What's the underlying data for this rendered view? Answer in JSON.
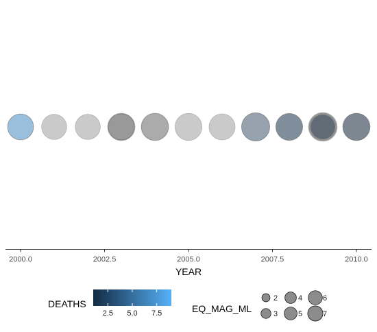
{
  "chart_data": {
    "type": "scatter",
    "title": "",
    "xlabel": "YEAR",
    "ylabel": "",
    "xlim": [
      1999.55,
      2010.45
    ],
    "x_ticks": [
      2000.0,
      2002.5,
      2005.0,
      2007.5,
      2010.0
    ],
    "x_tick_labels": [
      "2000.0",
      "2002.5",
      "2005.0",
      "2007.5",
      "2010.0"
    ],
    "grid": false,
    "points": [
      {
        "year": 2000,
        "layers": [
          {
            "mag": 5.6,
            "deaths": null
          },
          {
            "mag": 5.4,
            "deaths": 9
          }
        ]
      },
      {
        "year": 2001,
        "layers": [
          {
            "mag": 5.2,
            "deaths": null
          }
        ]
      },
      {
        "year": 2002,
        "layers": [
          {
            "mag": 5.2,
            "deaths": null
          }
        ]
      },
      {
        "year": 2003,
        "layers": [
          {
            "mag": 6.2,
            "deaths": null
          },
          {
            "mag": 5.8,
            "deaths": null
          },
          {
            "mag": 5.5,
            "deaths": null
          }
        ]
      },
      {
        "year": 2004,
        "layers": [
          {
            "mag": 6.2,
            "deaths": null
          },
          {
            "mag": 5.9,
            "deaths": null
          }
        ]
      },
      {
        "year": 2005,
        "layers": [
          {
            "mag": 6.0,
            "deaths": null
          }
        ]
      },
      {
        "year": 2006,
        "layers": [
          {
            "mag": 5.6,
            "deaths": null
          }
        ]
      },
      {
        "year": 2007,
        "layers": [
          {
            "mag": 6.6,
            "deaths": 4
          },
          {
            "mag": 6.4,
            "deaths": null
          }
        ]
      },
      {
        "year": 2008,
        "layers": [
          {
            "mag": 6.0,
            "deaths": null
          },
          {
            "mag": 5.8,
            "deaths": 2
          }
        ]
      },
      {
        "year": 2009,
        "layers": [
          {
            "mag": 6.8,
            "deaths": null
          },
          {
            "mag": 6.3,
            "deaths": null
          },
          {
            "mag": 5.7,
            "deaths": null
          },
          {
            "mag": 4.8,
            "deaths": 1
          }
        ]
      },
      {
        "year": 2010,
        "layers": [
          {
            "mag": 6.2,
            "deaths": null
          },
          {
            "mag": 6.0,
            "deaths": 1
          }
        ]
      }
    ],
    "legend": {
      "placement": "bottom",
      "color": {
        "title": "DEATHS",
        "range": [
          1,
          9
        ],
        "ticks": [
          2.5,
          5.0,
          7.5
        ],
        "tick_labels": [
          "2.5",
          "5.0",
          "7.5"
        ],
        "low_color": "#132b43",
        "high_color": "#56b1f7",
        "na_color": "#808080"
      },
      "size": {
        "title": "EQ_MAG_ML",
        "values": [
          2,
          3,
          4,
          5,
          6,
          7
        ],
        "labels": [
          "2",
          "3",
          "4",
          "5",
          "6",
          "7"
        ]
      }
    }
  }
}
